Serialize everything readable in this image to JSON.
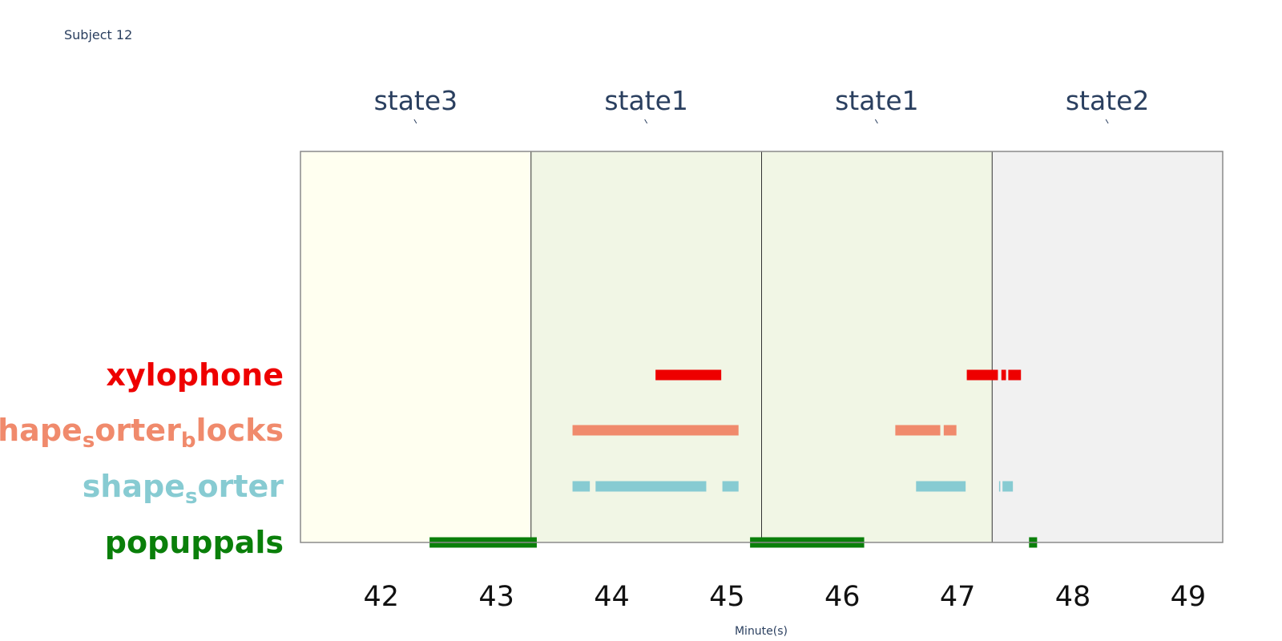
{
  "chart_data": {
    "type": "timeline",
    "title": "Subject 12",
    "xlabel": "Minute(s)",
    "xlim": [
      41.3,
      49.3
    ],
    "x_ticks": [
      42,
      43,
      44,
      45,
      46,
      47,
      48,
      49
    ],
    "x_tick_labels": [
      "42",
      "43",
      "44",
      "45",
      "46",
      "47",
      "48",
      "49"
    ],
    "states": [
      {
        "label": "state3",
        "start": 41.3,
        "end": 43.3,
        "color": "#fffff0"
      },
      {
        "label": "state1",
        "start": 43.3,
        "end": 45.3,
        "color": "#f1f6e5"
      },
      {
        "label": "state1",
        "start": 45.3,
        "end": 47.3,
        "color": "#f1f6e5"
      },
      {
        "label": "state2",
        "start": 47.3,
        "end": 49.3,
        "color": "#f1f1f1"
      }
    ],
    "rows": [
      {
        "label_parts": [
          {
            "text": "xylophone",
            "sub": false
          }
        ],
        "color": "#ee0000",
        "segments": [
          [
            44.38,
            44.95
          ],
          [
            47.08,
            47.35
          ],
          [
            47.38,
            47.42
          ],
          [
            47.44,
            47.55
          ]
        ]
      },
      {
        "label_parts": [
          {
            "text": "shape",
            "sub": false
          },
          {
            "text": "s",
            "sub": true
          },
          {
            "text": "orter",
            "sub": false
          },
          {
            "text": "b",
            "sub": true
          },
          {
            "text": "locks",
            "sub": false
          }
        ],
        "color": "#f08a6c",
        "segments": [
          [
            43.66,
            45.1
          ],
          [
            46.46,
            46.85
          ],
          [
            46.88,
            46.99
          ]
        ]
      },
      {
        "label_parts": [
          {
            "text": "shape",
            "sub": false
          },
          {
            "text": "s",
            "sub": true
          },
          {
            "text": "orter",
            "sub": false
          }
        ],
        "color": "#87cbd2",
        "segments": [
          [
            43.66,
            43.81
          ],
          [
            43.86,
            44.82
          ],
          [
            44.96,
            45.1
          ],
          [
            46.64,
            47.07
          ],
          [
            47.36,
            47.37
          ],
          [
            47.39,
            47.48
          ]
        ]
      },
      {
        "label_parts": [
          {
            "text": "popuppals",
            "sub": false
          }
        ],
        "color": "#0a7f0a",
        "segments": [
          [
            42.42,
            43.35
          ],
          [
            45.2,
            46.19
          ],
          [
            47.62,
            47.69
          ]
        ]
      }
    ]
  }
}
